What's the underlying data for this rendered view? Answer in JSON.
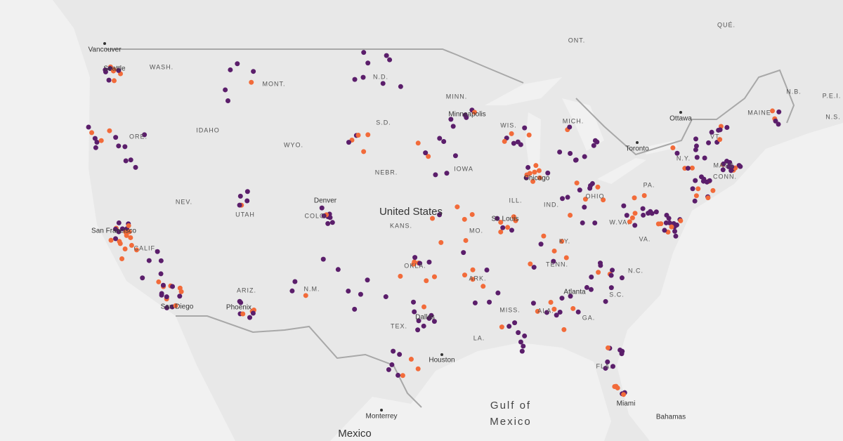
{
  "labels": {
    "countries": [
      "ONT.",
      "QUÉ.",
      "N.B.",
      "P.E.I.",
      "N.S.",
      "United States",
      "Mexico"
    ],
    "states": [
      "WASH.",
      "MONT.",
      "N.D.",
      "MINN.",
      "ORE.",
      "IDAHO",
      "S.D.",
      "WIS.",
      "MICH.",
      "MAINE",
      "WYO.",
      "NEBR.",
      "IOWA",
      "N.Y.",
      "VT.",
      "MASS.",
      "CONN.",
      "NEV.",
      "UTAH",
      "COLO.",
      "KANS.",
      "ILL.",
      "IND.",
      "OHIO",
      "PA.",
      "CALIF.",
      "MO.",
      "W.VA.",
      "KY.",
      "VA.",
      "OKLA.",
      "TENN.",
      "N.C.",
      "ARIZ.",
      "N.M.",
      "ARK.",
      "S.C.",
      "MISS.",
      "ALA.",
      "GA.",
      "TEX.",
      "LA.",
      "FLA."
    ],
    "cities": [
      "Vancouver",
      "Seattle",
      "Minneapolis",
      "Ottawa",
      "Toronto",
      "Chicago",
      "Denver",
      "San Francisco",
      "St. Louis",
      "Atlanta",
      "Phoenix",
      "San Diego",
      "Dallas",
      "Houston",
      "Miami",
      "Monterrey",
      "Bahamas"
    ],
    "water": [
      "Gulf of",
      "Mexico"
    ]
  }
}
